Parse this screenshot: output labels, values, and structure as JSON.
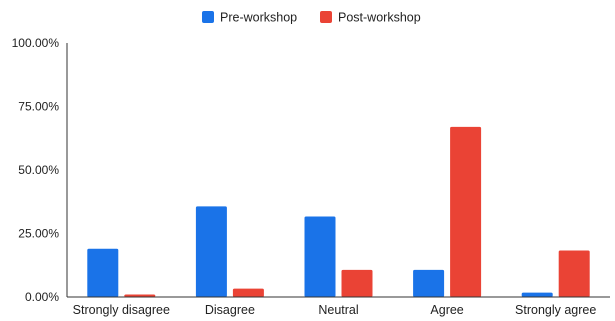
{
  "chart_data": {
    "type": "bar",
    "categories": [
      "Strongly disagree",
      "Disagree",
      "Neutral",
      "Agree",
      "Strongly agree"
    ],
    "series": [
      {
        "name": "Pre-workshop",
        "color": "#1a73e8",
        "values": [
          19.0,
          35.7,
          31.7,
          10.7,
          1.7
        ]
      },
      {
        "name": "Post-workshop",
        "color": "#ea4335",
        "values": [
          1.0,
          3.3,
          10.7,
          67.0,
          18.3
        ]
      }
    ],
    "yticks": [
      "0.00%",
      "25.00%",
      "50.00%",
      "75.00%",
      "100.00%"
    ],
    "ylim": [
      0,
      100
    ],
    "grid": false,
    "legend_position": "top-center"
  }
}
